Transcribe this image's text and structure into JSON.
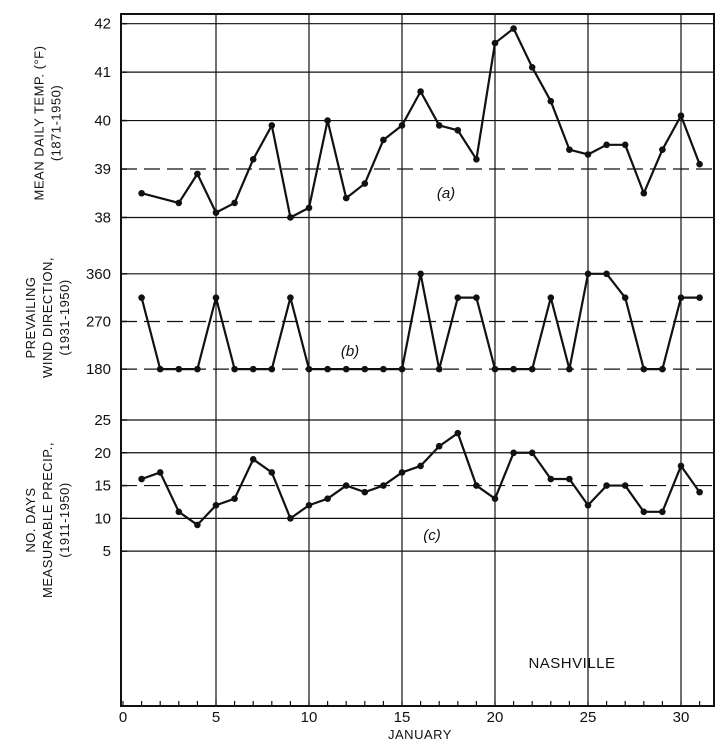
{
  "chart_data": {
    "type": "line",
    "x_title": "JANUARY",
    "x_ticks": [
      "0",
      "5",
      "10",
      "15",
      "20",
      "25",
      "30"
    ],
    "location_label": "NASHVILLE",
    "days": [
      1,
      2,
      3,
      4,
      5,
      6,
      7,
      8,
      9,
      10,
      11,
      12,
      13,
      14,
      15,
      16,
      17,
      18,
      19,
      20,
      21,
      22,
      23,
      24,
      25,
      26,
      27,
      28,
      29,
      30,
      31
    ],
    "panels": [
      {
        "id": "temp",
        "ylabel_lines": [
          "MEAN DAILY TEMP. (°F)",
          "(1871-1950)"
        ],
        "panel_label": "(a)",
        "ylim": [
          37.7,
          42.2
        ],
        "y_ticks": [
          "38",
          "39",
          "40",
          "41",
          "42"
        ],
        "y_tick_values": [
          38,
          39,
          40,
          41,
          42
        ],
        "solid_values": [
          38,
          40,
          41,
          42
        ],
        "dashed_values": [
          39
        ],
        "x": [
          1,
          3,
          4,
          5,
          6,
          7,
          8,
          9,
          10,
          11,
          12,
          13,
          14,
          15,
          16,
          17,
          18,
          19,
          20,
          21,
          22,
          23,
          24,
          25,
          26,
          27,
          28,
          29,
          30,
          31
        ],
        "values": [
          38.5,
          38.3,
          38.9,
          38.1,
          38.3,
          39.2,
          39.9,
          38.0,
          38.2,
          40.0,
          38.4,
          38.7,
          39.6,
          39.9,
          40.6,
          39.9,
          39.8,
          39.2,
          41.6,
          41.9,
          41.1,
          40.4,
          39.4,
          39.3,
          39.5,
          39.5,
          38.5,
          39.4,
          40.1,
          39.1
        ]
      },
      {
        "id": "wind",
        "ylabel_lines": [
          "PREVAILING",
          "WIND DIRECTION,",
          "(1931-1950)"
        ],
        "panel_label": "(b)",
        "ylim": [
          150,
          405
        ],
        "y_ticks": [
          "180",
          "270",
          "360"
        ],
        "y_tick_values": [
          180,
          270,
          360
        ],
        "solid_values": [
          360
        ],
        "dashed_values": [
          180,
          270
        ],
        "x": [
          1,
          2,
          3,
          4,
          5,
          6,
          7,
          8,
          9,
          10,
          11,
          12,
          13,
          14,
          15,
          16,
          17,
          18,
          19,
          20,
          21,
          22,
          23,
          24,
          25,
          26,
          27,
          28,
          29,
          30,
          31
        ],
        "values": [
          315,
          180,
          180,
          180,
          315,
          180,
          180,
          180,
          315,
          180,
          180,
          180,
          180,
          180,
          180,
          360,
          180,
          315,
          315,
          180,
          180,
          180,
          315,
          180,
          360,
          360,
          315,
          180,
          180,
          315,
          315
        ]
      },
      {
        "id": "precip",
        "ylabel_lines": [
          "NO. DAYS",
          "MEASURABLE PRECIP.,",
          "(1911-1950)"
        ],
        "panel_label": "(c)",
        "ylim": [
          -5.5,
          25
        ],
        "y_ticks": [
          "5",
          "10",
          "15",
          "20",
          "25"
        ],
        "y_tick_values": [
          5,
          10,
          15,
          20,
          25
        ],
        "solid_values": [
          5,
          10,
          20,
          25
        ],
        "dashed_values": [
          15
        ],
        "x": [
          1,
          2,
          3,
          4,
          5,
          6,
          7,
          8,
          9,
          10,
          11,
          12,
          13,
          14,
          15,
          16,
          17,
          18,
          19,
          20,
          21,
          22,
          23,
          24,
          25,
          26,
          27,
          28,
          29,
          30,
          31
        ],
        "values": [
          16,
          17,
          11,
          9,
          12,
          13,
          19,
          17,
          10,
          12,
          13,
          15,
          14,
          15,
          17,
          18,
          21,
          23,
          15,
          13,
          20,
          20,
          16,
          16,
          12,
          15,
          15,
          11,
          11,
          18,
          14
        ]
      }
    ]
  }
}
